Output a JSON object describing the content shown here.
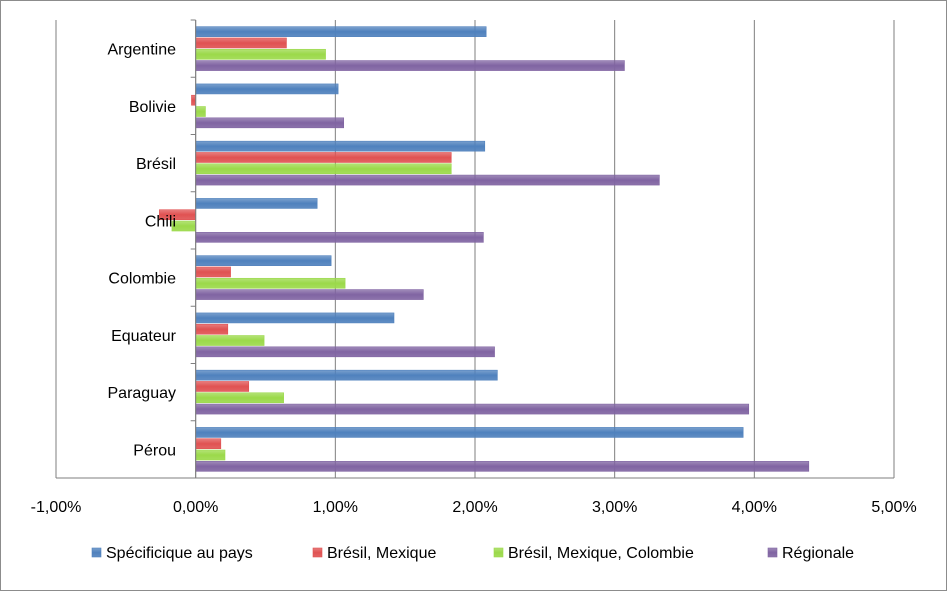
{
  "chart_data": {
    "type": "bar",
    "orientation": "horizontal",
    "title": "",
    "xlabel": "",
    "ylabel": "",
    "categories": [
      "Argentine",
      "Bolivie",
      "Brésil",
      "Chili",
      "Colombie",
      "Equateur",
      "Paraguay",
      "Pérou"
    ],
    "series": [
      {
        "name": "Spécificique au pays",
        "color": "#4f81bd",
        "values": [
          2.08,
          1.02,
          2.07,
          0.87,
          0.97,
          1.42,
          2.16,
          3.92
        ]
      },
      {
        "name": "Brésil, Mexique",
        "color": "#e05252",
        "values": [
          0.65,
          -0.03,
          1.83,
          -0.26,
          0.25,
          0.23,
          0.38,
          0.18
        ]
      },
      {
        "name": "Brésil, Mexique, Colombie",
        "color": "#9bd94a",
        "values": [
          0.93,
          0.07,
          1.83,
          -0.17,
          1.07,
          0.49,
          0.63,
          0.21
        ]
      },
      {
        "name": "Régionale",
        "color": "#8064a2",
        "values": [
          3.07,
          1.06,
          3.32,
          2.06,
          1.63,
          2.14,
          3.96,
          4.39
        ]
      }
    ],
    "xlim": [
      -1.0,
      5.0
    ],
    "xticks": [
      "-1,00%",
      "0,00%",
      "1,00%",
      "2,00%",
      "3,00%",
      "4,00%",
      "5,00%"
    ],
    "grid": "vertical",
    "legend": "bottom"
  }
}
